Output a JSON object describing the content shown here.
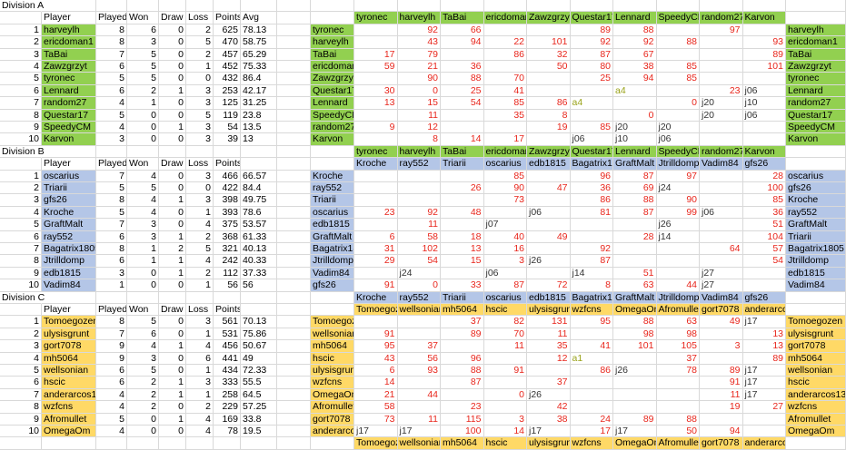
{
  "divisions": [
    {
      "title": "Division A",
      "color": "#92d050",
      "header": [
        "Player",
        "Played",
        "Won",
        "Draw",
        "Loss",
        "Points",
        "Avg"
      ],
      "standings": [
        [
          1,
          "harveylh",
          8,
          6,
          0,
          2,
          625,
          78.13
        ],
        [
          2,
          "ericdoman1",
          8,
          3,
          0,
          5,
          470,
          58.75
        ],
        [
          3,
          "TaBai",
          7,
          5,
          0,
          2,
          457,
          65.29
        ],
        [
          4,
          "Zawzgrzyt",
          6,
          5,
          0,
          1,
          452,
          75.33
        ],
        [
          5,
          "tyronec",
          5,
          5,
          0,
          0,
          432,
          86.4
        ],
        [
          6,
          "Lennard",
          6,
          2,
          1,
          3,
          253,
          42.17
        ],
        [
          7,
          "random27",
          4,
          1,
          0,
          3,
          125,
          31.25
        ],
        [
          8,
          "Questar17",
          5,
          0,
          0,
          5,
          119,
          23.8
        ],
        [
          9,
          "SpeedyCM",
          4,
          0,
          1,
          3,
          54,
          13.5
        ],
        [
          10,
          "Karvon",
          3,
          0,
          0,
          3,
          39,
          13
        ]
      ],
      "matrix": {
        "columns": [
          "tyronec",
          "harveylh",
          "TaBai",
          "ericdoman1",
          "Zawzgrzyt",
          "Questar17",
          "Lennard",
          "SpeedyCM",
          "random27",
          "Karvon"
        ],
        "rows": [
          {
            "name": "tyronec",
            "cells": [
              null,
              92,
              66,
              null,
              null,
              89,
              88,
              null,
              97,
              null
            ]
          },
          {
            "name": "harveylh",
            "cells": [
              null,
              43,
              94,
              22,
              101,
              92,
              92,
              88,
              null,
              93
            ]
          },
          {
            "name": "TaBai",
            "cells": [
              17,
              79,
              null,
              86,
              32,
              87,
              67,
              null,
              null,
              89
            ]
          },
          {
            "name": "ericdoman1",
            "cells": [
              59,
              21,
              36,
              null,
              50,
              80,
              38,
              85,
              null,
              101
            ]
          },
          {
            "name": "Zawzgrzyt",
            "cells": [
              null,
              90,
              88,
              70,
              null,
              25,
              94,
              85,
              null,
              null
            ]
          },
          {
            "name": "Questar17",
            "cells": [
              30,
              0,
              25,
              41,
              null,
              null,
              "a4",
              null,
              23,
              "j06"
            ]
          },
          {
            "name": "Lennard",
            "cells": [
              13,
              15,
              54,
              85,
              86,
              "a4",
              null,
              0,
              "j20",
              "j10"
            ]
          },
          {
            "name": "SpeedyCM",
            "cells": [
              null,
              11,
              null,
              35,
              8,
              null,
              0,
              null,
              "j20",
              "j06"
            ]
          },
          {
            "name": "random27",
            "cells": [
              9,
              12,
              null,
              null,
              19,
              85,
              "j20",
              "j20",
              null,
              null
            ]
          },
          {
            "name": "Karvon",
            "cells": [
              null,
              8,
              14,
              17,
              null,
              "j06",
              "j10",
              "j06",
              null,
              null
            ]
          }
        ],
        "right_names": [
          "harveylh",
          "ericdoman1",
          "TaBai",
          "Zawzgrzyt",
          "tyronec",
          "Lennard",
          "random27",
          "Questar17",
          "SpeedyCM",
          "Karvon"
        ]
      }
    },
    {
      "title": "Division B",
      "color": "#b4c6e7",
      "header": [
        "Player",
        "Played",
        "Won",
        "Draw",
        "Loss",
        "Points"
      ],
      "standings": [
        [
          1,
          "oscarius",
          7,
          4,
          0,
          3,
          466,
          66.57
        ],
        [
          2,
          "Triarii",
          5,
          5,
          0,
          0,
          422,
          84.4
        ],
        [
          3,
          "gfs26",
          8,
          4,
          1,
          3,
          398,
          49.75
        ],
        [
          4,
          "Kroche",
          5,
          4,
          0,
          1,
          393,
          78.6
        ],
        [
          5,
          "GraftMalt",
          7,
          3,
          0,
          4,
          375,
          53.57
        ],
        [
          6,
          "ray552",
          6,
          3,
          1,
          2,
          368,
          61.33
        ],
        [
          7,
          "Bagatrix1805",
          8,
          1,
          2,
          5,
          321,
          40.13
        ],
        [
          8,
          "Jtrilldomp",
          6,
          1,
          1,
          4,
          242,
          40.33
        ],
        [
          9,
          "edb1815",
          3,
          0,
          1,
          2,
          112,
          37.33
        ],
        [
          10,
          "Vadim84",
          1,
          0,
          0,
          1,
          56,
          56
        ]
      ],
      "matrix": {
        "columns": [
          "Kroche",
          "ray552",
          "Triarii",
          "oscarius",
          "edb1815",
          "Bagatrix1805",
          "GraftMalt",
          "Jtrilldomp",
          "Vadim84",
          "gfs26"
        ],
        "rows": [
          {
            "name": "Kroche",
            "cells": [
              null,
              null,
              null,
              85,
              null,
              96,
              87,
              97,
              null,
              28
            ]
          },
          {
            "name": "ray552",
            "cells": [
              null,
              null,
              26,
              90,
              47,
              36,
              69,
              "j24",
              null,
              100
            ]
          },
          {
            "name": "Triarii",
            "cells": [
              null,
              null,
              null,
              73,
              null,
              86,
              88,
              90,
              null,
              85
            ]
          },
          {
            "name": "oscarius",
            "cells": [
              23,
              92,
              48,
              null,
              "j06",
              81,
              87,
              99,
              "j06",
              36
            ]
          },
          {
            "name": "edb1815",
            "cells": [
              null,
              11,
              null,
              "j07",
              null,
              null,
              null,
              "j26",
              null,
              51
            ]
          },
          {
            "name": "GraftMalt",
            "cells": [
              6,
              58,
              18,
              40,
              49,
              null,
              28,
              "j14",
              null,
              104
            ]
          },
          {
            "name": "Bagatrix1805",
            "cells": [
              31,
              102,
              13,
              16,
              null,
              92,
              null,
              null,
              64,
              57
            ]
          },
          {
            "name": "Jtrilldomp",
            "cells": [
              29,
              54,
              15,
              3,
              "j26",
              87,
              null,
              null,
              null,
              54
            ]
          },
          {
            "name": "Vadim84",
            "cells": [
              null,
              "j24",
              null,
              "j06",
              null,
              "j14",
              51,
              null,
              "j27",
              null
            ]
          },
          {
            "name": "gfs26",
            "cells": [
              91,
              0,
              33,
              87,
              72,
              8,
              63,
              44,
              "j27",
              null
            ]
          }
        ],
        "right_names": [
          "oscarius",
          "gfs26",
          "Kroche",
          "ray552",
          "GraftMalt",
          "Triarii",
          "Bagatrix1805",
          "Jtrilldomp",
          "edb1815",
          "Vadim84"
        ]
      }
    },
    {
      "title": "Division C",
      "color": "#ffd966",
      "header": [
        "Player",
        "Played",
        "Won",
        "Draw",
        "Loss",
        "Points"
      ],
      "standings": [
        [
          1,
          "Tomoegozen",
          8,
          5,
          0,
          3,
          561,
          70.13
        ],
        [
          2,
          "ulysisgrunt",
          7,
          6,
          0,
          1,
          531,
          75.86
        ],
        [
          3,
          "gort7078",
          9,
          4,
          1,
          4,
          456,
          50.67
        ],
        [
          4,
          "mh5064",
          9,
          3,
          0,
          6,
          441,
          49
        ],
        [
          5,
          "wellsonian",
          6,
          5,
          0,
          1,
          434,
          72.33
        ],
        [
          6,
          "hscic",
          6,
          2,
          1,
          3,
          333,
          55.5
        ],
        [
          7,
          "anderarcos13",
          4,
          2,
          1,
          1,
          258,
          64.5
        ],
        [
          8,
          "wzfcns",
          4,
          2,
          0,
          2,
          229,
          57.25
        ],
        [
          9,
          "Afromullet",
          5,
          0,
          1,
          4,
          169,
          33.8
        ],
        [
          10,
          "OmegaOm",
          4,
          0,
          0,
          4,
          78,
          19.5
        ]
      ],
      "matrix": {
        "columns": [
          "Tomoegozen",
          "wellsonian",
          "mh5064",
          "hscic",
          "ulysisgrunt",
          "wzfcns",
          "OmegaOm",
          "Afromullet",
          "gort7078",
          "anderarcos13"
        ],
        "rows": [
          {
            "name": "Tomoegozen",
            "cells": [
              null,
              null,
              37,
              82,
              131,
              95,
              88,
              63,
              49,
              "j17"
            ]
          },
          {
            "name": "wellsonian",
            "cells": [
              91,
              null,
              89,
              70,
              11,
              null,
              98,
              98,
              null,
              13
            ]
          },
          {
            "name": "mh5064",
            "cells": [
              95,
              37,
              null,
              11,
              35,
              41,
              101,
              105,
              3,
              13
            ]
          },
          {
            "name": "hscic",
            "cells": [
              43,
              56,
              96,
              null,
              12,
              "a1",
              null,
              37,
              null,
              89
            ]
          },
          {
            "name": "ulysisgrunt",
            "cells": [
              6,
              93,
              88,
              91,
              null,
              86,
              "j26",
              78,
              89,
              "j17"
            ]
          },
          {
            "name": "wzfcns",
            "cells": [
              14,
              null,
              87,
              null,
              37,
              null,
              null,
              null,
              91,
              "j17"
            ]
          },
          {
            "name": "OmegaOm",
            "cells": [
              21,
              44,
              null,
              0,
              "j26",
              null,
              null,
              null,
              11,
              "j17"
            ]
          },
          {
            "name": "Afromullet",
            "cells": [
              58,
              null,
              23,
              null,
              42,
              null,
              null,
              null,
              19,
              27
            ]
          },
          {
            "name": "gort7078",
            "cells": [
              73,
              11,
              115,
              3,
              38,
              24,
              89,
              88,
              null,
              null
            ]
          },
          {
            "name": "anderarcos13",
            "cells": [
              "j17",
              "j17",
              100,
              14,
              "j17",
              17,
              "j17",
              50,
              94,
              null
            ]
          }
        ],
        "right_names": [
          "Tomoegozen",
          "ulysisgrunt",
          "gort7078",
          "mh5064",
          "wellsonian",
          "hscic",
          "anderarcos13",
          "wzfcns",
          "Afromullet",
          "OmegaOm"
        ]
      }
    }
  ]
}
